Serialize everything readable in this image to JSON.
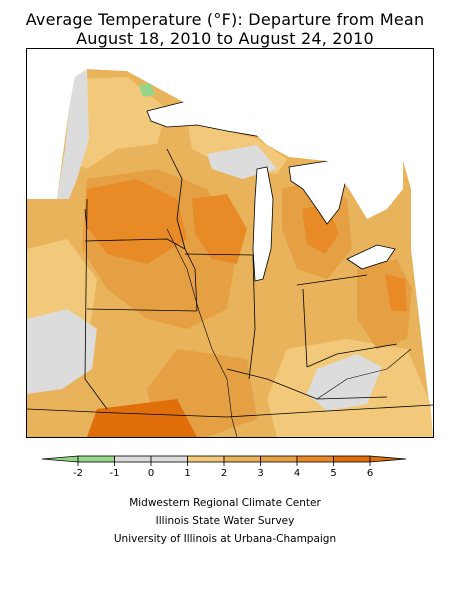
{
  "title": {
    "line1": "Average Temperature (°F): Departure from Mean",
    "line2": "August 18, 2010 to August 24, 2010"
  },
  "legend": {
    "tick_labels": [
      "-2",
      "-1",
      "0",
      "1",
      "2",
      "3",
      "4",
      "5",
      "6"
    ],
    "bins": [
      {
        "range": "-2 to -1",
        "color": "#97d68a"
      },
      {
        "range": "-1 to 0",
        "color": "#dcdcdc"
      },
      {
        "range": "0 to 1",
        "color": "#dcdcdc"
      },
      {
        "range": "1 to 2",
        "color": "#f2c87a"
      },
      {
        "range": "2 to 3",
        "color": "#e8b35b"
      },
      {
        "range": "3 to 4",
        "color": "#e5a044"
      },
      {
        "range": "4 to 5",
        "color": "#e88a26"
      },
      {
        "range": "5 to 6",
        "color": "#e06f0b"
      }
    ]
  },
  "map": {
    "region": "Midwest",
    "colors": {
      "near_normal": "#dcdcdc",
      "below_normal": "#97d68a",
      "plus1_2": "#f2c87a",
      "plus2_3": "#e8b35b",
      "plus3_4": "#e5a044",
      "plus4_5": "#e88a26",
      "plus5_6": "#e06f0b",
      "water": "#ffffff"
    }
  },
  "credits": {
    "line1": "Midwestern Regional Climate Center",
    "line2": "Illinois State Water Survey",
    "line3": "University of Illinois at Urbana-Champaign"
  }
}
